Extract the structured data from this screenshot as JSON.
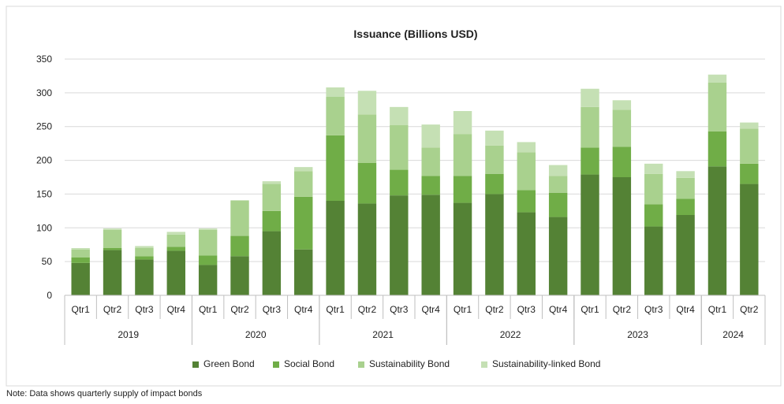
{
  "chart_data": {
    "type": "bar",
    "stacked": true,
    "title": "Issuance (Billions USD)",
    "xlabel": "",
    "ylabel": "",
    "ylim": [
      0,
      350
    ],
    "yticks": [
      0,
      50,
      100,
      150,
      200,
      250,
      300,
      350
    ],
    "grid": true,
    "legend_position": "bottom",
    "categories": [
      "Qtr1",
      "Qtr2",
      "Qtr3",
      "Qtr4",
      "Qtr1",
      "Qtr2",
      "Qtr3",
      "Qtr4",
      "Qtr1",
      "Qtr2",
      "Qtr3",
      "Qtr4",
      "Qtr1",
      "Qtr2",
      "Qtr3",
      "Qtr4",
      "Qtr1",
      "Qtr2",
      "Qtr3",
      "Qtr4",
      "Qtr1",
      "Qtr2"
    ],
    "groups": [
      {
        "label": "2019",
        "start": 0,
        "count": 4
      },
      {
        "label": "2020",
        "start": 4,
        "count": 4
      },
      {
        "label": "2021",
        "start": 8,
        "count": 4
      },
      {
        "label": "2022",
        "start": 12,
        "count": 4
      },
      {
        "label": "2023",
        "start": 16,
        "count": 4
      },
      {
        "label": "2024",
        "start": 20,
        "count": 2
      }
    ],
    "series": [
      {
        "name": "Green Bond",
        "color": "#548235",
        "values": [
          48,
          67,
          53,
          66,
          45,
          58,
          95,
          68,
          140,
          136,
          148,
          149,
          137,
          150,
          123,
          116,
          179,
          175,
          102,
          119,
          191,
          165
        ]
      },
      {
        "name": "Social Bond",
        "color": "#70AD47",
        "values": [
          8,
          3,
          5,
          6,
          14,
          30,
          30,
          78,
          97,
          60,
          38,
          28,
          40,
          30,
          33,
          36,
          40,
          45,
          33,
          24,
          52,
          30
        ]
      },
      {
        "name": "Sustainability Bond",
        "color": "#A9D18E",
        "values": [
          12,
          27,
          12,
          18,
          38,
          52,
          40,
          38,
          57,
          72,
          66,
          42,
          62,
          42,
          56,
          25,
          60,
          55,
          45,
          31,
          72,
          52
        ]
      },
      {
        "name": "Sustainability-linked Bond",
        "color": "#C5E0B4",
        "values": [
          2,
          2,
          3,
          4,
          2,
          1,
          4,
          6,
          14,
          35,
          27,
          34,
          34,
          22,
          15,
          16,
          27,
          14,
          15,
          10,
          12,
          9
        ]
      }
    ]
  },
  "note": "Note: Data shows quarterly supply of impact bonds"
}
